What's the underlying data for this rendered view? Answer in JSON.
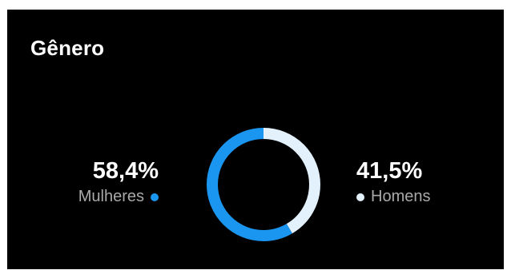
{
  "title": "Gênero",
  "colors": {
    "background": "#000000",
    "women": "#1a96f0",
    "men": "#e3f1fd",
    "legend_text": "#a9a9a9"
  },
  "women": {
    "percent_label": "58,4%",
    "label": "Mulheres",
    "value": 58.4
  },
  "men": {
    "percent_label": "41,5%",
    "label": "Homens",
    "value": 41.5
  }
}
